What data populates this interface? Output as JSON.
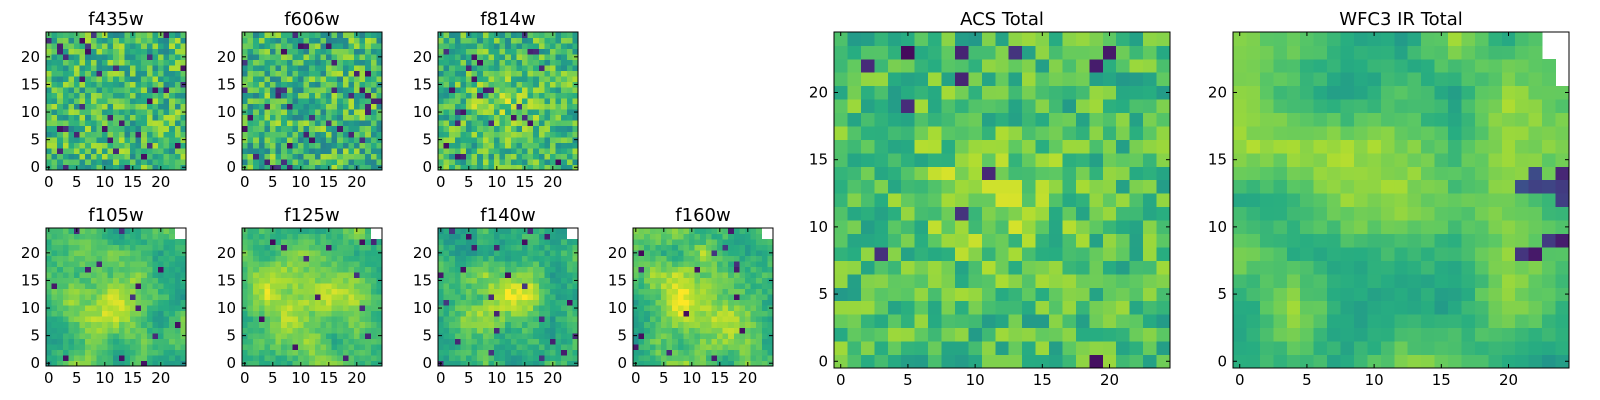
{
  "figure": {
    "description_colormap": "viridis",
    "colors": {
      "low": "#440154",
      "mid": "#21918c",
      "high": "#fde725",
      "frame": "#000000",
      "background": "#ffffff"
    }
  },
  "chart_data": [
    {
      "type": "heatmap",
      "title": "f435w",
      "grid": [
        25,
        25
      ],
      "xticks": [
        "0",
        "5",
        "10",
        "15",
        "20"
      ],
      "yticks": [
        "0",
        "5",
        "10",
        "15",
        "20"
      ],
      "xlim": [
        -0.5,
        24.5
      ],
      "ylim": [
        -0.5,
        24.5
      ],
      "texture": "noisy-flat",
      "level": 0.68,
      "noise": 0.22,
      "lows": 0.05,
      "seed": 11
    },
    {
      "type": "heatmap",
      "title": "f606w",
      "grid": [
        25,
        25
      ],
      "xticks": [
        "0",
        "5",
        "10",
        "15",
        "20"
      ],
      "yticks": [
        "0",
        "5",
        "10",
        "15",
        "20"
      ],
      "xlim": [
        -0.5,
        24.5
      ],
      "ylim": [
        -0.5,
        24.5
      ],
      "texture": "noisy-flat",
      "level": 0.67,
      "noise": 0.23,
      "lows": 0.05,
      "seed": 23
    },
    {
      "type": "heatmap",
      "title": "f814w",
      "grid": [
        25,
        25
      ],
      "xticks": [
        "0",
        "5",
        "10",
        "15",
        "20"
      ],
      "yticks": [
        "0",
        "5",
        "10",
        "15",
        "20"
      ],
      "xlim": [
        -0.5,
        24.5
      ],
      "ylim": [
        -0.5,
        24.5
      ],
      "texture": "noisy-blob",
      "level": 0.68,
      "noise": 0.2,
      "lows": 0.05,
      "seed": 37
    },
    {
      "type": "heatmap",
      "title": "f105w",
      "grid": [
        25,
        25
      ],
      "xticks": [
        "0",
        "5",
        "10",
        "15",
        "20"
      ],
      "yticks": [
        "0",
        "5",
        "10",
        "15",
        "20"
      ],
      "xlim": [
        -0.5,
        24.5
      ],
      "ylim": [
        -0.5,
        24.5
      ],
      "texture": "smooth-blob",
      "level": 0.66,
      "noise": 0.12,
      "lows": 0.02,
      "seed": 41,
      "masked_corner": "top-right"
    },
    {
      "type": "heatmap",
      "title": "f125w",
      "grid": [
        25,
        25
      ],
      "xticks": [
        "0",
        "5",
        "10",
        "15",
        "20"
      ],
      "yticks": [
        "0",
        "5",
        "10",
        "15",
        "20"
      ],
      "xlim": [
        -0.5,
        24.5
      ],
      "ylim": [
        -0.5,
        24.5
      ],
      "texture": "smooth-blob",
      "level": 0.75,
      "noise": 0.12,
      "lows": 0.02,
      "seed": 53,
      "masked_corner": "top-right"
    },
    {
      "type": "heatmap",
      "title": "f140w",
      "grid": [
        25,
        25
      ],
      "xticks": [
        "0",
        "5",
        "10",
        "15",
        "20"
      ],
      "yticks": [
        "0",
        "5",
        "10",
        "15",
        "20"
      ],
      "xlim": [
        -0.5,
        24.5
      ],
      "ylim": [
        -0.5,
        24.5
      ],
      "texture": "smooth-blob",
      "level": 0.68,
      "noise": 0.14,
      "lows": 0.03,
      "seed": 67,
      "masked_corner": "top-right"
    },
    {
      "type": "heatmap",
      "title": "f160w",
      "grid": [
        25,
        25
      ],
      "xticks": [
        "0",
        "5",
        "10",
        "15",
        "20"
      ],
      "yticks": [
        "0",
        "5",
        "10",
        "15",
        "20"
      ],
      "xlim": [
        -0.5,
        24.5
      ],
      "ylim": [
        -0.5,
        24.5
      ],
      "texture": "smooth-blob",
      "level": 0.72,
      "noise": 0.14,
      "lows": 0.03,
      "seed": 79,
      "masked_corner": "top-right"
    },
    {
      "type": "heatmap",
      "title": "ACS Total",
      "grid": [
        25,
        25
      ],
      "xticks": [
        "0",
        "5",
        "10",
        "15",
        "20"
      ],
      "yticks": [
        "0",
        "5",
        "10",
        "15",
        "20"
      ],
      "xlim": [
        -0.5,
        24.5
      ],
      "ylim": [
        -0.5,
        24.5
      ],
      "texture": "noisy-blob",
      "level": 0.7,
      "noise": 0.16,
      "lows": 0.03,
      "seed": 97
    },
    {
      "type": "heatmap",
      "title": "WFC3 IR Total",
      "grid": [
        25,
        25
      ],
      "xticks": [
        "0",
        "5",
        "10",
        "15",
        "20"
      ],
      "yticks": [
        "0",
        "5",
        "10",
        "15",
        "20"
      ],
      "xlim": [
        -0.5,
        24.5
      ],
      "ylim": [
        -0.5,
        24.5
      ],
      "texture": "smooth-blob",
      "level": 0.7,
      "noise": 0.09,
      "lows": 0.0,
      "seed": 113,
      "masked_corner": "top-right",
      "dark_region": "right-middle"
    }
  ]
}
